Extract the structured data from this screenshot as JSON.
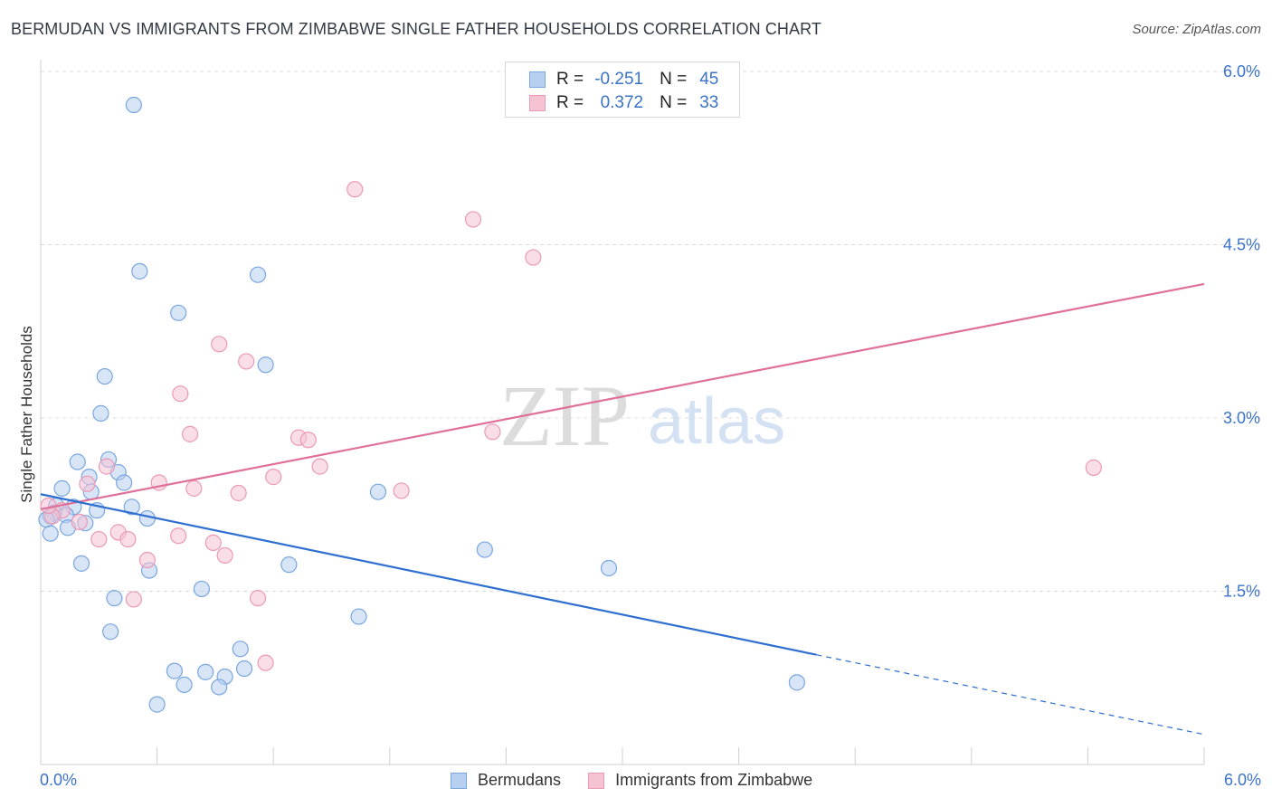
{
  "title": "BERMUDAN VS IMMIGRANTS FROM ZIMBABWE SINGLE FATHER HOUSEHOLDS CORRELATION CHART",
  "source": "Source: ZipAtlas.com",
  "watermark": {
    "zip": "ZIP",
    "atlas": "atlas"
  },
  "colors": {
    "blue": "#3b73c9",
    "blue_fill": "#b7d0f0",
    "blue_stroke": "#7aa6e0",
    "blue_line": "#2f6fd0",
    "pink": "#e0608a",
    "pink_fill": "#f6c3d3",
    "pink_stroke": "#ec99b5",
    "pink_line": "#e0709a"
  },
  "legend_top": [
    {
      "swatch": "blue",
      "r_label": "R =",
      "r_value": "-0.251",
      "n_label": "N =",
      "n_value": "45"
    },
    {
      "swatch": "pink",
      "r_label": "R =",
      "r_value": "0.372",
      "n_label": "N =",
      "n_value": "33"
    }
  ],
  "legend_bottom": [
    {
      "swatch": "blue",
      "label": "Bermudans"
    },
    {
      "swatch": "pink",
      "label": "Immigrants from Zimbabwe"
    }
  ],
  "chart_data": {
    "type": "scatter",
    "title": "BERMUDAN VS IMMIGRANTS FROM ZIMBABWE SINGLE FATHER HOUSEHOLDS CORRELATION CHART",
    "xlabel": "",
    "ylabel": "Single Father Households",
    "xlim": [
      0,
      6.0
    ],
    "ylim": [
      0,
      6.0
    ],
    "x_tick_labels": [
      "0.0%",
      "6.0%"
    ],
    "y_ticks": [
      1.5,
      3.0,
      4.5,
      6.0
    ],
    "y_tick_labels": [
      "1.5%",
      "3.0%",
      "4.5%",
      "6.0%"
    ],
    "grid": true,
    "series": [
      {
        "name": "Bermudans",
        "color": "blue",
        "r": -0.251,
        "n": 45,
        "trend": {
          "x0": 0.0,
          "y0": 2.34,
          "x1": 4.0,
          "y1": 0.95,
          "dash_x1": 6.0,
          "dash_y1": 0.26
        },
        "points": [
          [
            0.48,
            5.71
          ],
          [
            0.51,
            4.27
          ],
          [
            1.12,
            4.24
          ],
          [
            0.71,
            3.91
          ],
          [
            1.16,
            3.46
          ],
          [
            0.33,
            3.36
          ],
          [
            0.31,
            3.04
          ],
          [
            0.19,
            2.62
          ],
          [
            0.35,
            2.64
          ],
          [
            0.4,
            2.53
          ],
          [
            0.25,
            2.49
          ],
          [
            0.11,
            2.39
          ],
          [
            0.26,
            2.36
          ],
          [
            0.43,
            2.44
          ],
          [
            0.08,
            2.24
          ],
          [
            0.17,
            2.23
          ],
          [
            0.29,
            2.2
          ],
          [
            0.47,
            2.23
          ],
          [
            0.07,
            2.18
          ],
          [
            0.13,
            2.16
          ],
          [
            0.05,
            2.15
          ],
          [
            0.03,
            2.12
          ],
          [
            0.55,
            2.13
          ],
          [
            0.23,
            2.09
          ],
          [
            0.14,
            2.05
          ],
          [
            0.05,
            2.0
          ],
          [
            1.74,
            2.36
          ],
          [
            0.21,
            1.74
          ],
          [
            0.56,
            1.68
          ],
          [
            1.28,
            1.73
          ],
          [
            2.29,
            1.86
          ],
          [
            2.93,
            1.7
          ],
          [
            0.38,
            1.44
          ],
          [
            0.83,
            1.52
          ],
          [
            1.64,
            1.28
          ],
          [
            0.36,
            1.15
          ],
          [
            1.03,
            1.0
          ],
          [
            0.69,
            0.81
          ],
          [
            0.85,
            0.8
          ],
          [
            0.95,
            0.76
          ],
          [
            1.05,
            0.83
          ],
          [
            0.74,
            0.69
          ],
          [
            0.92,
            0.67
          ],
          [
            0.6,
            0.52
          ],
          [
            3.9,
            0.71
          ]
        ]
      },
      {
        "name": "Immigrants from Zimbabwe",
        "color": "pink",
        "r": 0.372,
        "n": 33,
        "trend": {
          "x0": 0.0,
          "y0": 2.21,
          "x1": 6.0,
          "y1": 4.16
        },
        "points": [
          [
            1.62,
            4.98
          ],
          [
            2.23,
            4.72
          ],
          [
            2.54,
            4.39
          ],
          [
            0.92,
            3.64
          ],
          [
            1.06,
            3.49
          ],
          [
            0.72,
            3.21
          ],
          [
            0.77,
            2.86
          ],
          [
            1.33,
            2.83
          ],
          [
            1.38,
            2.81
          ],
          [
            2.33,
            2.88
          ],
          [
            1.44,
            2.58
          ],
          [
            0.34,
            2.58
          ],
          [
            1.2,
            2.49
          ],
          [
            0.61,
            2.44
          ],
          [
            0.24,
            2.43
          ],
          [
            0.79,
            2.39
          ],
          [
            1.02,
            2.35
          ],
          [
            1.86,
            2.37
          ],
          [
            0.11,
            2.2
          ],
          [
            0.06,
            2.15
          ],
          [
            0.2,
            2.1
          ],
          [
            0.4,
            2.01
          ],
          [
            0.71,
            1.98
          ],
          [
            0.3,
            1.95
          ],
          [
            0.45,
            1.95
          ],
          [
            0.89,
            1.92
          ],
          [
            0.55,
            1.77
          ],
          [
            0.95,
            1.81
          ],
          [
            0.04,
            2.24
          ],
          [
            0.48,
            1.43
          ],
          [
            1.12,
            1.44
          ],
          [
            1.16,
            0.88
          ],
          [
            5.43,
            2.57
          ]
        ]
      }
    ]
  }
}
